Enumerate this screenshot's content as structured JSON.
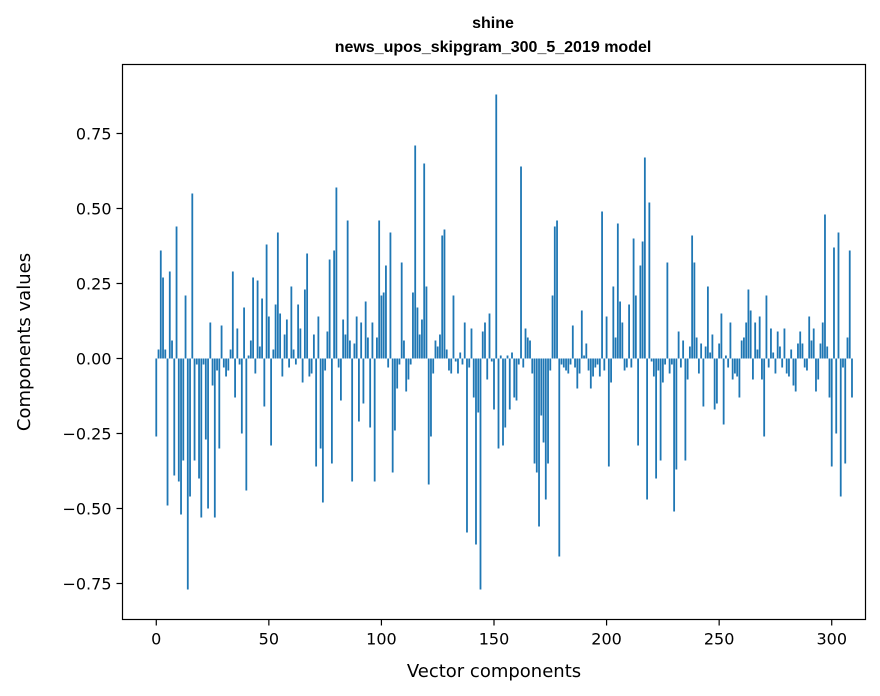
{
  "chart_data": {
    "type": "bar",
    "title": "shine",
    "subtitle": "news_upos_skipgram_300_5_2019 model",
    "xlabel": "Vector components",
    "ylabel": "Components values",
    "xlim": [
      -15,
      315
    ],
    "ylim": [
      -0.87,
      0.98
    ],
    "xticks": [
      0,
      50,
      100,
      150,
      200,
      250,
      300
    ],
    "yticks": [
      -0.75,
      -0.5,
      -0.25,
      0.0,
      0.25,
      0.5,
      0.75
    ],
    "xtick_labels": [
      "0",
      "50",
      "100",
      "150",
      "200",
      "250",
      "300"
    ],
    "ytick_labels": [
      "−0.75",
      "−0.50",
      "−0.25",
      "0.00",
      "0.25",
      "0.50",
      "0.75"
    ],
    "bar_color": "#1f77b4",
    "grid": false,
    "values": [
      -0.26,
      0.03,
      0.36,
      0.27,
      0.03,
      -0.49,
      0.29,
      0.06,
      -0.39,
      0.44,
      -0.41,
      -0.52,
      -0.34,
      0.21,
      -0.77,
      -0.46,
      0.55,
      -0.34,
      -0.02,
      -0.4,
      -0.53,
      -0.02,
      -0.27,
      -0.5,
      0.12,
      -0.09,
      -0.53,
      -0.04,
      -0.3,
      0.11,
      -0.03,
      -0.06,
      -0.04,
      0.03,
      0.29,
      -0.13,
      0.1,
      -0.02,
      -0.25,
      0.17,
      -0.44,
      0.01,
      0.06,
      0.27,
      -0.05,
      0.26,
      0.04,
      0.2,
      -0.16,
      0.38,
      0.14,
      -0.29,
      0.03,
      0.18,
      0.42,
      0.15,
      -0.06,
      0.08,
      0.13,
      -0.03,
      0.24,
      0.03,
      -0.02,
      0.18,
      0.1,
      -0.08,
      0.23,
      0.35,
      -0.06,
      -0.05,
      0.08,
      -0.36,
      0.14,
      -0.3,
      -0.48,
      -0.04,
      0.09,
      0.33,
      -0.35,
      0.36,
      0.57,
      -0.03,
      -0.14,
      0.13,
      0.08,
      0.46,
      0.06,
      -0.41,
      0.05,
      0.14,
      -0.21,
      0.12,
      -0.15,
      0.19,
      0.07,
      -0.23,
      0.12,
      -0.41,
      0.07,
      0.46,
      0.21,
      0.22,
      0.31,
      -0.03,
      0.42,
      -0.38,
      -0.24,
      -0.1,
      -0.02,
      0.32,
      0.06,
      -0.11,
      -0.07,
      -0.02,
      0.22,
      0.71,
      0.17,
      0.08,
      0.13,
      0.65,
      0.24,
      -0.42,
      -0.26,
      -0.05,
      0.06,
      0.04,
      0.08,
      0.41,
      0.43,
      0.03,
      -0.04,
      -0.05,
      0.21,
      -0.01,
      -0.05,
      0.02,
      -0.02,
      0.12,
      -0.58,
      -0.03,
      0.1,
      -0.13,
      -0.62,
      -0.18,
      -0.77,
      0.09,
      0.12,
      -0.07,
      0.15,
      -0.01,
      -0.17,
      0.88,
      -0.3,
      0.01,
      -0.29,
      -0.23,
      0.01,
      -0.17,
      0.02,
      -0.13,
      -0.14,
      -0.02,
      0.64,
      -0.03,
      0.1,
      0.07,
      0.06,
      -0.05,
      -0.35,
      -0.38,
      -0.56,
      -0.19,
      -0.28,
      -0.47,
      -0.35,
      -0.04,
      0.21,
      0.44,
      0.46,
      -0.66,
      -0.02,
      -0.03,
      -0.04,
      -0.05,
      -0.02,
      0.11,
      -0.03,
      -0.1,
      -0.05,
      0.16,
      0.01,
      0.05,
      -0.04,
      -0.1,
      -0.06,
      -0.03,
      -0.02,
      -0.06,
      0.49,
      -0.04,
      0.14,
      -0.36,
      -0.08,
      0.24,
      0.07,
      0.45,
      0.19,
      0.12,
      -0.04,
      -0.03,
      0.18,
      -0.03,
      0.4,
      0.21,
      -0.29,
      0.31,
      0.39,
      0.67,
      -0.47,
      0.52,
      -0.01,
      -0.06,
      -0.4,
      -0.04,
      -0.34,
      -0.08,
      -0.02,
      0.32,
      -0.05,
      -0.02,
      -0.51,
      -0.37,
      0.09,
      -0.03,
      0.06,
      -0.34,
      -0.07,
      0.04,
      0.41,
      0.32,
      0.07,
      -0.05,
      0.05,
      -0.16,
      0.04,
      0.24,
      0.02,
      0.08,
      -0.17,
      -0.15,
      0.05,
      0.15,
      -0.22,
      0.01,
      -0.03,
      0.12,
      -0.07,
      -0.05,
      -0.06,
      -0.13,
      0.06,
      0.07,
      0.12,
      0.23,
      0.16,
      -0.07,
      0.12,
      0.03,
      0.14,
      -0.07,
      -0.26,
      0.21,
      -0.03,
      0.1,
      0.02,
      -0.05,
      0.09,
      0.04,
      -0.03,
      0.1,
      -0.05,
      -0.06,
      0.03,
      -0.09,
      -0.11,
      0.05,
      0.09,
      0.05,
      -0.03,
      -0.04,
      0.14,
      0.06,
      0.1,
      -0.11,
      -0.07,
      0.05,
      0.12,
      0.48,
      0.04,
      -0.13,
      -0.36,
      0.37,
      -0.25,
      0.42,
      -0.46,
      -0.03,
      -0.35,
      0.07,
      0.36,
      -0.13
    ]
  }
}
